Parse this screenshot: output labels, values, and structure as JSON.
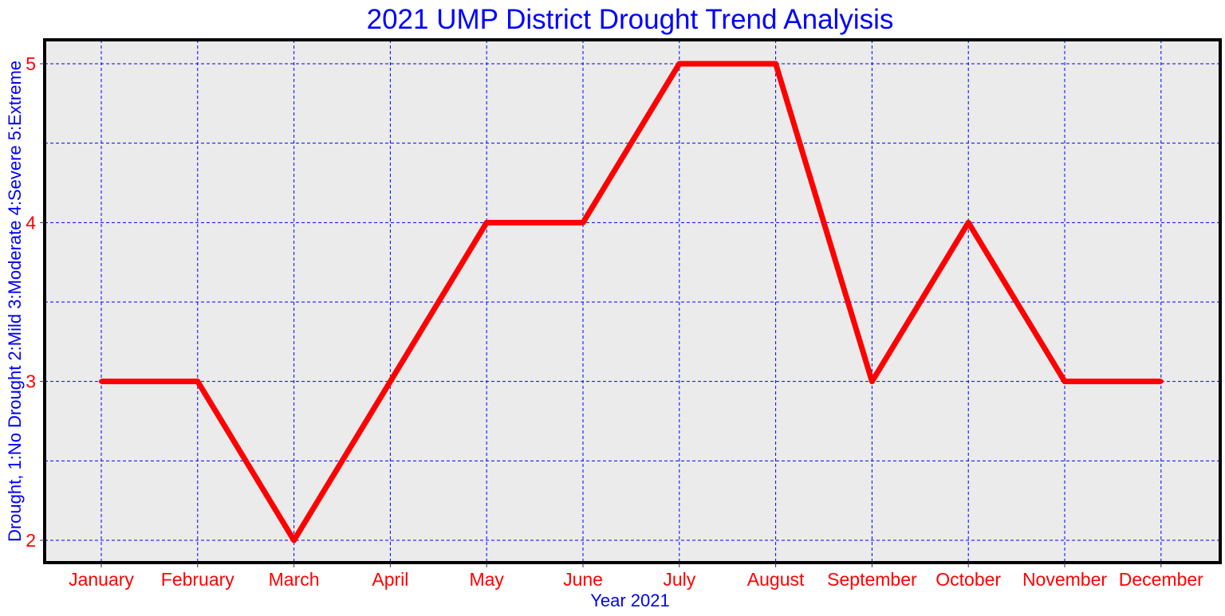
{
  "chart_data": {
    "type": "line",
    "title": "2021 UMP District Drought Trend Analyisis",
    "xlabel": "Year 2021",
    "ylabel": "Drought, 1:No Drought 2:Mild 3:Moderate 4:Severe 5:Extreme",
    "categories": [
      "January",
      "February",
      "March",
      "April",
      "May",
      "June",
      "July",
      "August",
      "September",
      "October",
      "November",
      "December"
    ],
    "series": [
      {
        "values": [
          3,
          3,
          2,
          3,
          4,
          4,
          5,
          5,
          3,
          4,
          3,
          3
        ]
      }
    ],
    "ylim": [
      1.85,
      5.15
    ],
    "yticks": [
      2,
      3,
      4,
      5
    ],
    "ygrid": [
      2,
      2.5,
      3,
      3.5,
      4,
      4.5,
      5
    ],
    "grid": true,
    "legend": "none"
  },
  "colors": {
    "title": "#0000FF",
    "axis_label": "#0000FF",
    "tick_label": "#FF0000",
    "line": "#FF0000",
    "grid": "#0000FF",
    "panel_background": "#EBEBEB",
    "frame": "#000000"
  }
}
